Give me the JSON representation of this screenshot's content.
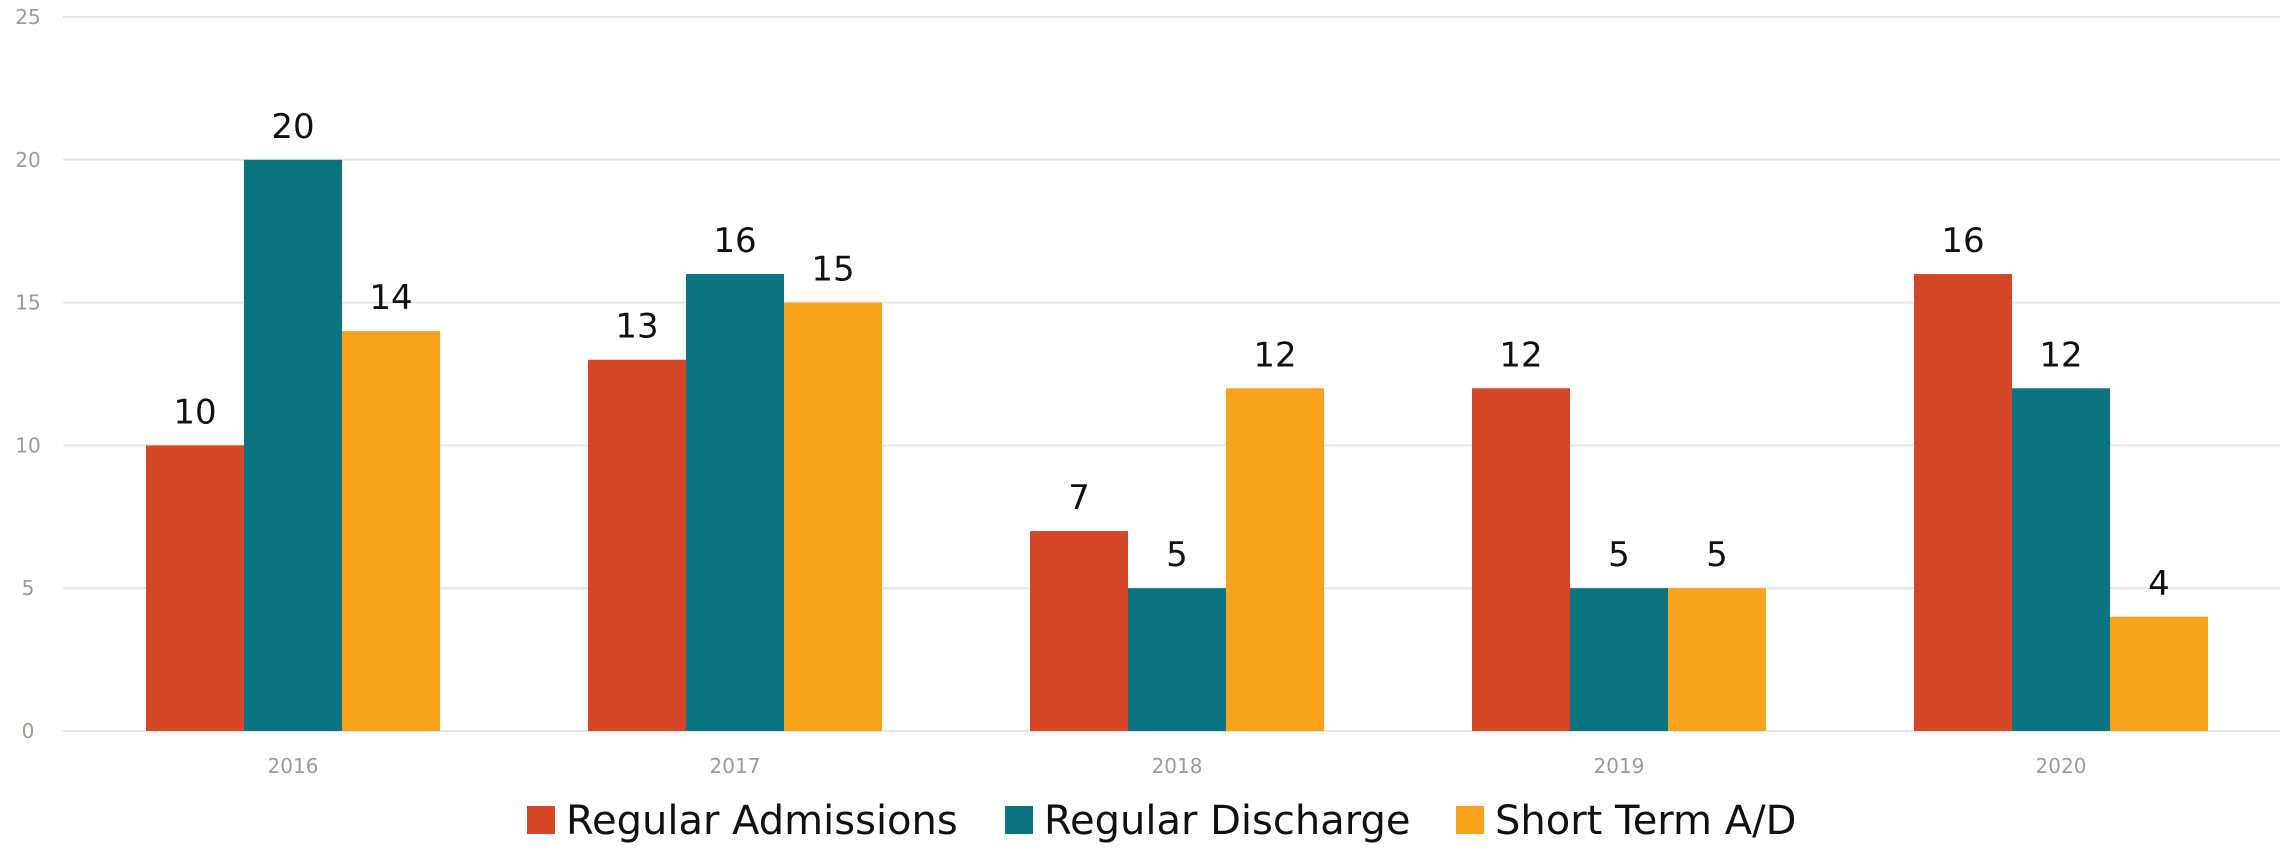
{
  "chart_data": {
    "type": "bar",
    "categories": [
      "2016",
      "2017",
      "2018",
      "2019",
      "2020"
    ],
    "series": [
      {
        "name": "Regular Admissions",
        "color": "#d34727",
        "values": [
          10,
          13,
          7,
          12,
          16
        ]
      },
      {
        "name": "Regular Discharge",
        "color": "#0b7480",
        "values": [
          20,
          16,
          5,
          5,
          12
        ]
      },
      {
        "name": "Short Term A/D",
        "color": "#f8a21e",
        "values": [
          14,
          15,
          12,
          5,
          4
        ]
      }
    ],
    "y_ticks": [
      "0",
      "5",
      "10",
      "15",
      "20",
      "25"
    ],
    "ylim": [
      0,
      25
    ],
    "grid": true,
    "legend_position": "bottom-center",
    "data_labels": true
  }
}
